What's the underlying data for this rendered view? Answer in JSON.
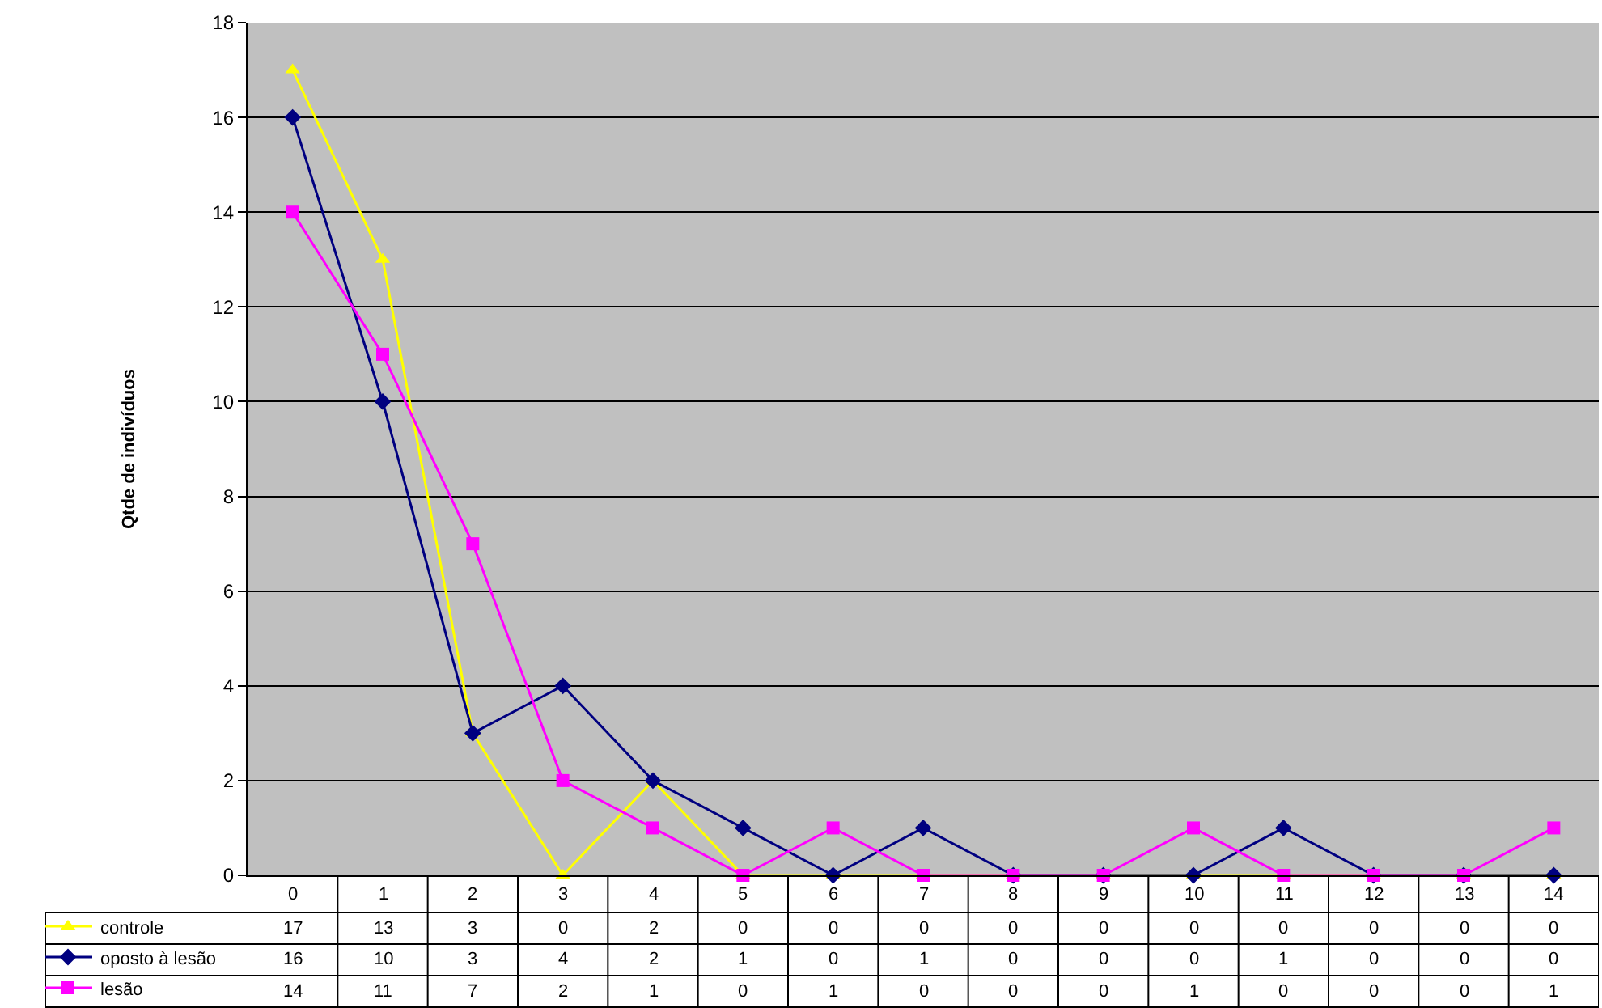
{
  "chart_data": {
    "type": "line",
    "ylabel": "Qtde de indivíduos",
    "categories": [
      "0",
      "1",
      "2",
      "3",
      "4",
      "5",
      "6",
      "7",
      "8",
      "9",
      "10",
      "11",
      "12",
      "13",
      "14"
    ],
    "series": [
      {
        "name": "controle",
        "color": "#ffff00",
        "marker": "triangle",
        "values": [
          17,
          13,
          3,
          0,
          2,
          0,
          0,
          0,
          0,
          0,
          0,
          0,
          0,
          0,
          0
        ]
      },
      {
        "name": "oposto à lesão",
        "color": "#000080",
        "marker": "diamond",
        "values": [
          16,
          10,
          3,
          4,
          2,
          1,
          0,
          1,
          0,
          0,
          0,
          1,
          0,
          0,
          0
        ]
      },
      {
        "name": "lesão",
        "color": "#ff00ff",
        "marker": "square",
        "values": [
          14,
          11,
          7,
          2,
          1,
          0,
          1,
          0,
          0,
          0,
          1,
          0,
          0,
          0,
          1
        ]
      }
    ],
    "ylim": [
      0,
      18
    ],
    "yticks": [
      0,
      2,
      4,
      6,
      8,
      10,
      12,
      14,
      16,
      18
    ],
    "grid": "y",
    "data_labels": true,
    "legend": "bottom left"
  }
}
